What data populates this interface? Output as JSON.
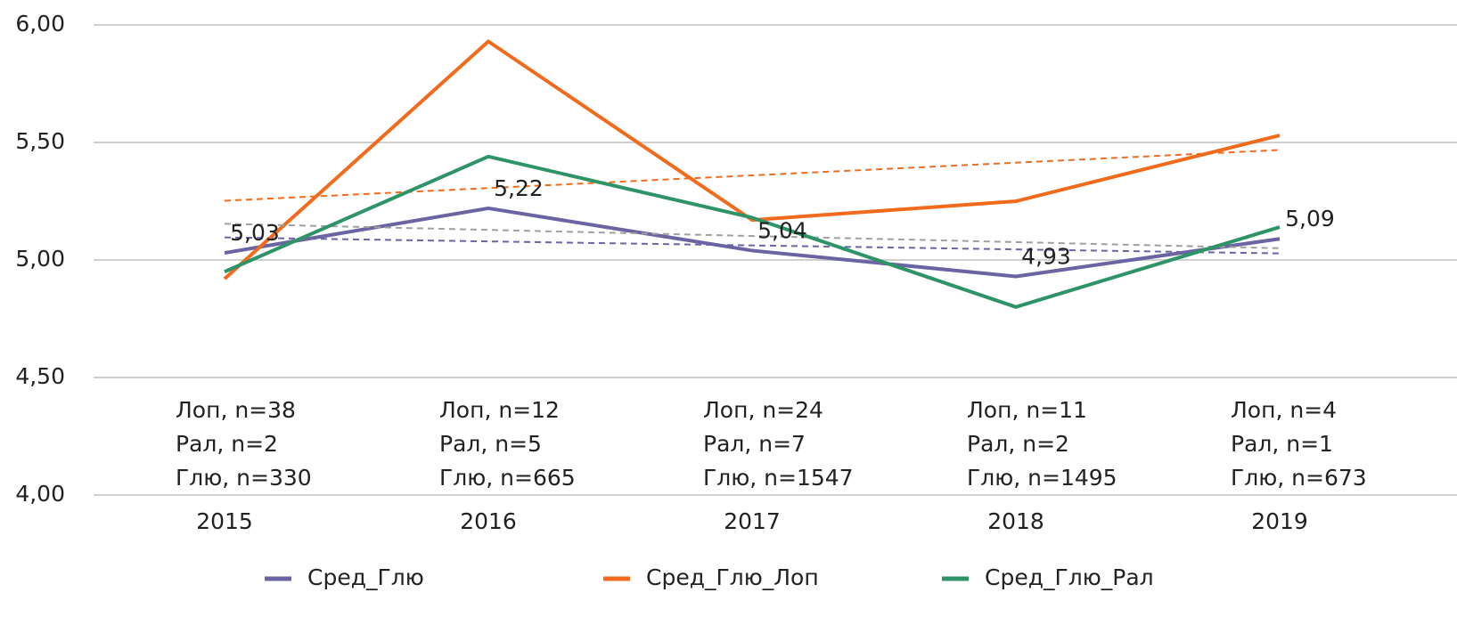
{
  "chart_data": {
    "type": "line",
    "categories": [
      "2015",
      "2016",
      "2017",
      "2018",
      "2019"
    ],
    "series": [
      {
        "name": "Сред_Глю",
        "color": "#6b64a2",
        "trend_color": "#6b64a2",
        "values": [
          5.03,
          5.22,
          5.04,
          4.93,
          5.09
        ],
        "value_labels": [
          "5,03",
          "5,22",
          "5,04",
          "4,93",
          "5,09"
        ]
      },
      {
        "name": "Сред_Глю_Лоп",
        "color": "#f26b1d",
        "trend_color": "#f26b1d",
        "values": [
          4.92,
          5.93,
          5.17,
          5.25,
          5.53
        ]
      },
      {
        "name": "Сред_Глю_Рал",
        "color": "#2e9467",
        "trend_color": "#a0a0a0",
        "values": [
          4.95,
          5.44,
          5.18,
          4.8,
          5.14
        ]
      }
    ],
    "annotations": [
      [
        "Лоп, n=38",
        "Рал, n=2",
        "Глю, n=330"
      ],
      [
        "Лоп, n=12",
        "Рал, n=5",
        "Глю, n=665"
      ],
      [
        "Лоп, n=24",
        "Рал, n=7",
        "Глю, n=1547"
      ],
      [
        "Лоп, n=11",
        "Рал, n=2",
        "Глю, n=1495"
      ],
      [
        "Лоп, n=4",
        "Рал, n=1",
        "Глю, n=673"
      ]
    ],
    "ylim": [
      4,
      6
    ],
    "yticks": [
      {
        "value": 4,
        "label": "4,00"
      },
      {
        "value": 4.5,
        "label": "4,50"
      },
      {
        "value": 5,
        "label": "5,00"
      },
      {
        "value": 5.5,
        "label": "5,50"
      },
      {
        "value": 6,
        "label": "6,00"
      }
    ],
    "grid": true,
    "trendline": true,
    "legend": "bottom"
  }
}
